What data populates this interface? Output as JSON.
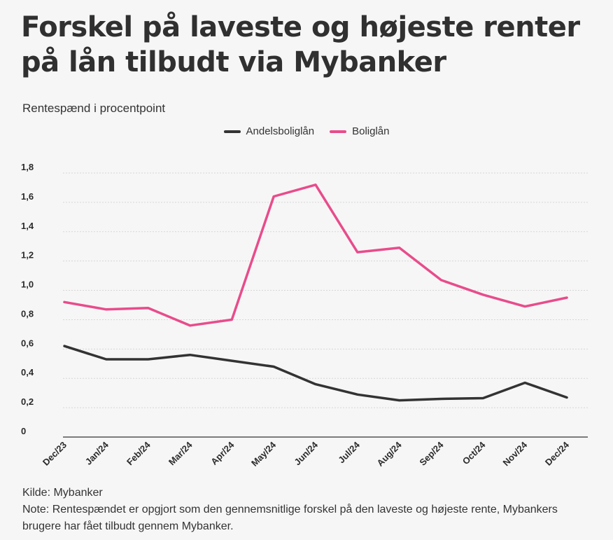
{
  "title": "Forskel på laveste og højeste renter på lån tilbudt via Mybanker",
  "subtitle": "Rentespænd i procentpoint",
  "source": "Kilde: Mybanker",
  "note": "Note: Rentespændet er opgjort som den gennemsnitlige forskel på den laveste og højeste rente, Mybankers brugere har fået tilbudt gennem Mybanker.",
  "chart_data": {
    "type": "line",
    "categories": [
      "Dec/23",
      "Jan/24",
      "Feb/24",
      "Mar/24",
      "Apr/24",
      "May/24",
      "Jun/24",
      "Jul/24",
      "Aug/24",
      "Sep/24",
      "Oct/24",
      "Nov/24",
      "Dec/24"
    ],
    "series": [
      {
        "name": "Andelsboliglån",
        "color": "#333333",
        "values": [
          0.62,
          0.53,
          0.53,
          0.56,
          0.52,
          0.48,
          0.36,
          0.29,
          0.25,
          0.26,
          0.265,
          0.37,
          0.27
        ]
      },
      {
        "name": "Boliglån",
        "color": "#e84c8b",
        "values": [
          0.92,
          0.87,
          0.88,
          0.76,
          0.8,
          1.64,
          1.72,
          1.26,
          1.29,
          1.07,
          0.97,
          0.89,
          0.95
        ]
      }
    ],
    "yticks": [
      "0",
      "0,2",
      "0,4",
      "0,6",
      "0,8",
      "1,0",
      "1,2",
      "1,4",
      "1,6",
      "1,8"
    ],
    "ylim": [
      0,
      1.8
    ],
    "grid": true,
    "legend_position": "top-center"
  }
}
